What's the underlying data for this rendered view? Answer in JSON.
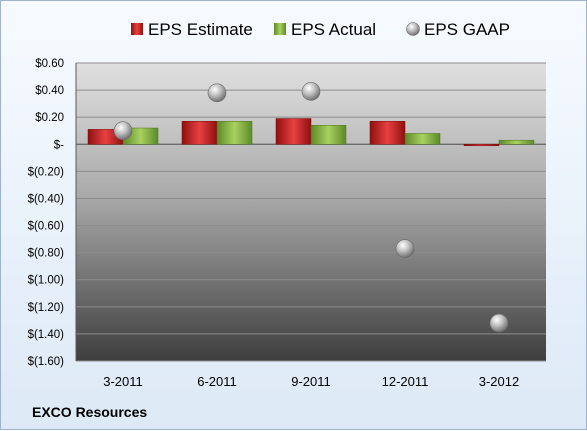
{
  "company": "EXCO Resources",
  "colors": {
    "estimate": "#d42a2a",
    "actual": "#8db64a",
    "gaap": "#a8a8a8"
  },
  "chart_data": {
    "type": "bar",
    "title": "",
    "xlabel": "",
    "ylabel": "",
    "categories": [
      "3-2011",
      "6-2011",
      "9-2011",
      "12-2011",
      "3-2012"
    ],
    "series": [
      {
        "name": "EPS Estimate",
        "type": "bar",
        "values": [
          0.11,
          0.17,
          0.19,
          0.17,
          -0.01
        ]
      },
      {
        "name": "EPS Actual",
        "type": "bar",
        "values": [
          0.12,
          0.17,
          0.14,
          0.08,
          0.03
        ]
      },
      {
        "name": "EPS GAAP",
        "type": "scatter",
        "values": [
          0.1,
          0.38,
          0.39,
          -0.77,
          -1.32
        ]
      }
    ],
    "ylim": [
      -1.6,
      0.6
    ],
    "yticks": [
      0.6,
      0.4,
      0.2,
      0,
      -0.2,
      -0.4,
      -0.6,
      -0.8,
      -1.0,
      -1.2,
      -1.4,
      -1.6
    ],
    "ytick_labels": [
      "$0.60",
      "$0.40",
      "$0.20",
      "$-",
      "$(0.20)",
      "$(0.40)",
      "$(0.60)",
      "$(0.80)",
      "$(1.00)",
      "$(1.20)",
      "$(1.40)",
      "$(1.60)"
    ],
    "grid": true,
    "legend": "top"
  }
}
